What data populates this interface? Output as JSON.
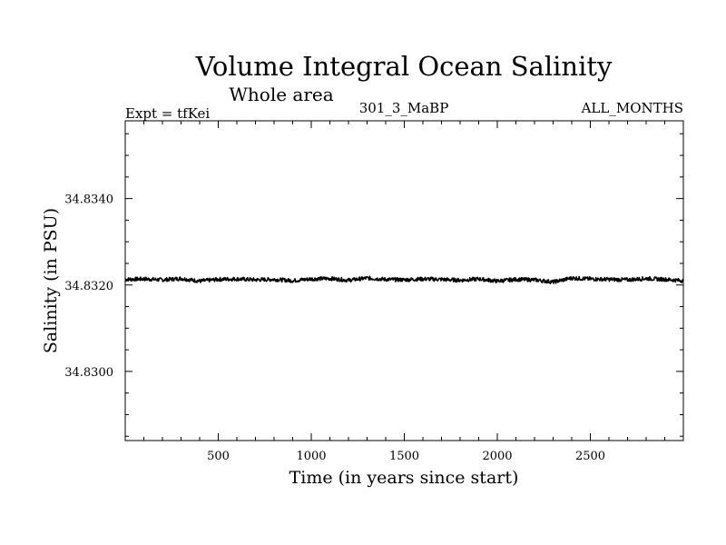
{
  "chart_data": {
    "type": "line",
    "title": "Volume Integral Ocean Salinity",
    "subtitle": "Whole area",
    "annotations": {
      "left": "Expt = tfKei",
      "center": "301_3_MaBP",
      "right": "ALL_MONTHS"
    },
    "xlabel": "Time (in years since start)",
    "ylabel": "Salinity (in PSU)",
    "xlim": [
      0,
      3000
    ],
    "ylim": [
      34.8284,
      34.8358
    ],
    "x_ticks": [
      500,
      1000,
      1500,
      2000,
      2500
    ],
    "x_tick_labels": [
      "500",
      "1000",
      "1500",
      "2000",
      "2500"
    ],
    "y_ticks": [
      34.83,
      34.832,
      34.834
    ],
    "y_tick_labels": [
      "34.8300",
      "34.8320",
      "34.8340"
    ],
    "grid": false,
    "line_color": "#000000",
    "series": [
      {
        "x": [
          0,
          100,
          200,
          300,
          400,
          500,
          600,
          700,
          800,
          900,
          1000,
          1100,
          1200,
          1300,
          1400,
          1500,
          1600,
          1700,
          1800,
          1900,
          2000,
          2100,
          2200,
          2300,
          2400,
          2500,
          2600,
          2700,
          2800,
          2900,
          3000
        ],
        "values": [
          34.83213,
          34.83214,
          34.83212,
          34.83215,
          34.83209,
          34.83213,
          34.83214,
          34.83212,
          34.83213,
          34.8321,
          34.83214,
          34.83215,
          34.83211,
          34.83216,
          34.83213,
          34.83212,
          34.83214,
          34.83213,
          34.83211,
          34.83214,
          34.83209,
          34.83213,
          34.83212,
          34.83207,
          34.83216,
          34.83214,
          34.83213,
          34.83212,
          34.83215,
          34.83213,
          34.8321
        ]
      }
    ]
  }
}
